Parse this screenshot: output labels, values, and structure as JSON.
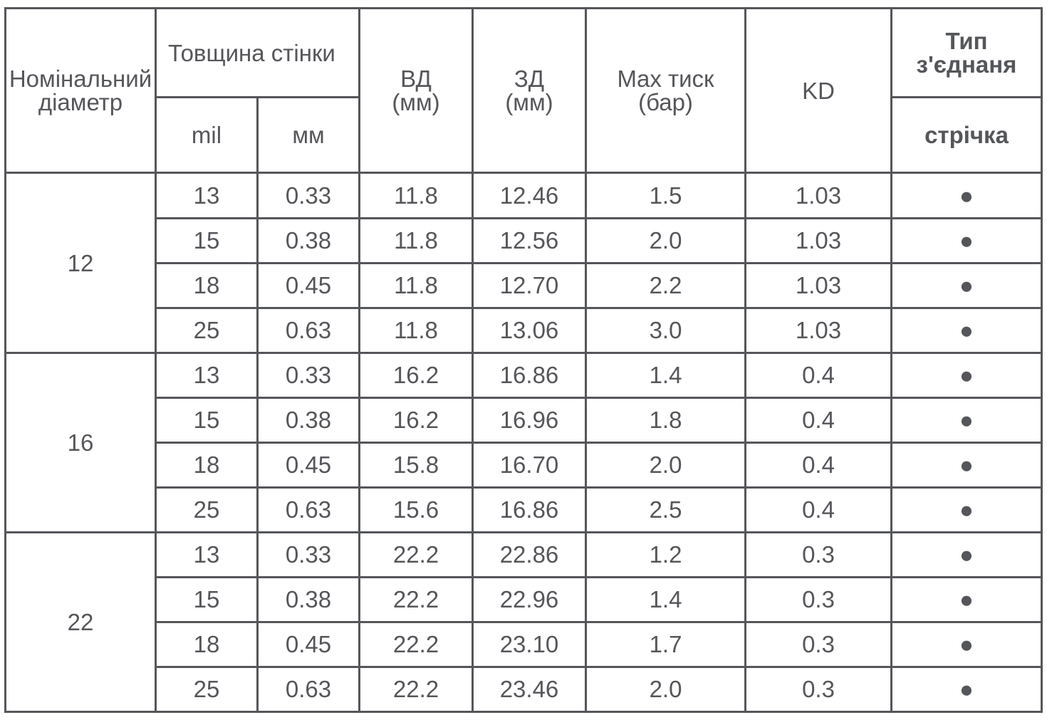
{
  "header": {
    "nominal_line1": "Номінальний",
    "nominal_line2": "діаметр",
    "wall": "Товщина стінки",
    "mil": "mil",
    "mm": "мм",
    "id_line1": "ВД",
    "id_line2": "(мм)",
    "od_line1": "ЗД",
    "od_line2": "(мм)",
    "pressure_line1": "Max тиск",
    "pressure_line2": "(бар)",
    "kd": "KD",
    "connection": "Тип з'єднаня",
    "tape": "стрічка"
  },
  "groups": [
    {
      "nominal": "12",
      "rows": [
        {
          "mil": "13",
          "mm": "0.33",
          "id": "11.8",
          "od": "12.46",
          "pressure": "1.5",
          "kd": "1.03",
          "tape": "●"
        },
        {
          "mil": "15",
          "mm": "0.38",
          "id": "11.8",
          "od": "12.56",
          "pressure": "2.0",
          "kd": "1.03",
          "tape": "●"
        },
        {
          "mil": "18",
          "mm": "0.45",
          "id": "11.8",
          "od": "12.70",
          "pressure": "2.2",
          "kd": "1.03",
          "tape": "●"
        },
        {
          "mil": "25",
          "mm": "0.63",
          "id": "11.8",
          "od": "13.06",
          "pressure": "3.0",
          "kd": "1.03",
          "tape": "●"
        }
      ]
    },
    {
      "nominal": "16",
      "rows": [
        {
          "mil": "13",
          "mm": "0.33",
          "id": "16.2",
          "od": "16.86",
          "pressure": "1.4",
          "kd": "0.4",
          "tape": "●"
        },
        {
          "mil": "15",
          "mm": "0.38",
          "id": "16.2",
          "od": "16.96",
          "pressure": "1.8",
          "kd": "0.4",
          "tape": "●"
        },
        {
          "mil": "18",
          "mm": "0.45",
          "id": "15.8",
          "od": "16.70",
          "pressure": "2.0",
          "kd": "0.4",
          "tape": "●"
        },
        {
          "mil": "25",
          "mm": "0.63",
          "id": "15.6",
          "od": "16.86",
          "pressure": "2.5",
          "kd": "0.4",
          "tape": "●"
        }
      ]
    },
    {
      "nominal": "22",
      "rows": [
        {
          "mil": "13",
          "mm": "0.33",
          "id": "22.2",
          "od": "22.86",
          "pressure": "1.2",
          "kd": "0.3",
          "tape": "●"
        },
        {
          "mil": "15",
          "mm": "0.38",
          "id": "22.2",
          "od": "22.96",
          "pressure": "1.4",
          "kd": "0.3",
          "tape": "●"
        },
        {
          "mil": "18",
          "mm": "0.45",
          "id": "22.2",
          "od": "23.10",
          "pressure": "1.7",
          "kd": "0.3",
          "tape": "●"
        },
        {
          "mil": "25",
          "mm": "0.63",
          "id": "22.2",
          "od": "23.46",
          "pressure": "2.0",
          "kd": "0.3",
          "tape": "●"
        }
      ]
    }
  ]
}
